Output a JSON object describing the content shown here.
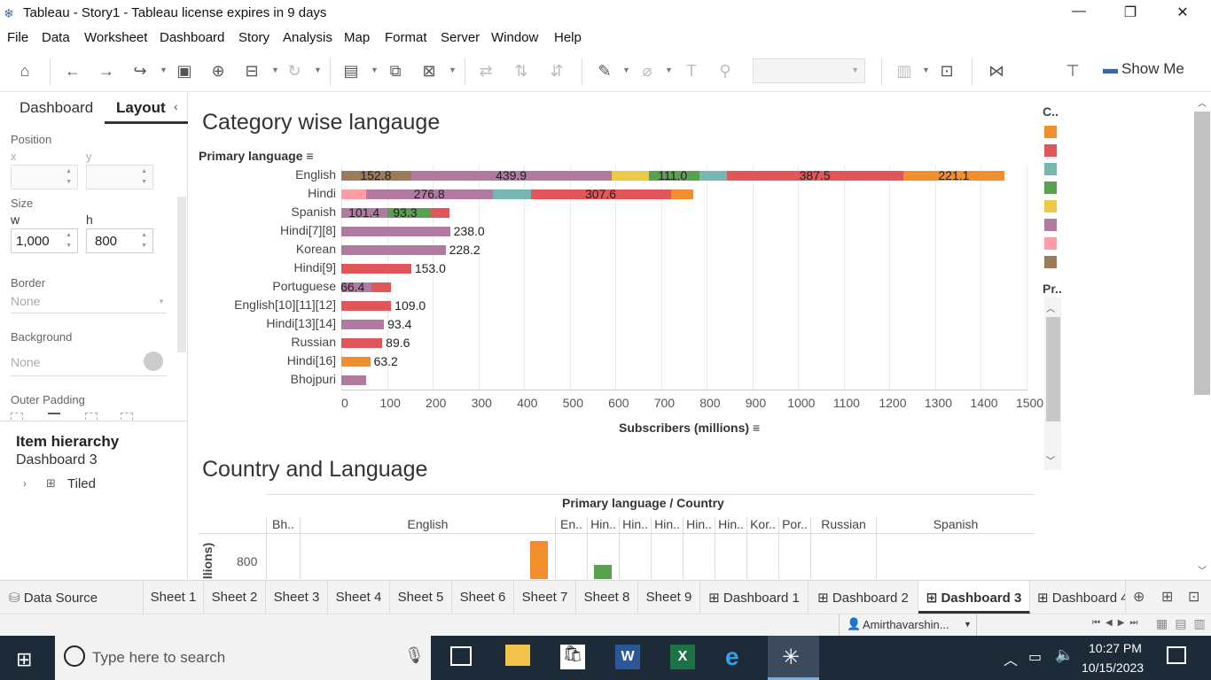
{
  "window": {
    "title": "Tableau - Story1 - Tableau license expires in 9 days"
  },
  "menu": [
    "File",
    "Data",
    "Worksheet",
    "Dashboard",
    "Story",
    "Analysis",
    "Map",
    "Format",
    "Server",
    "Window",
    "Help"
  ],
  "toolbar": {
    "show_me": "Show Me"
  },
  "left_panel": {
    "tabs": {
      "dashboard": "Dashboard",
      "layout": "Layout"
    },
    "position_label": "Position",
    "x_label": "x",
    "y_label": "y",
    "size_label": "Size",
    "w_label": "w",
    "h_label": "h",
    "w_value": "1,000",
    "h_value": "800",
    "border_label": "Border",
    "border_value": "None",
    "background_label": "Background",
    "background_value": "None",
    "outer_padding_label": "Outer Padding",
    "item_hierarchy_title": "Item hierarchy",
    "hierarchy_root": "Dashboard 3",
    "hierarchy_child": "Tiled"
  },
  "chart1_title": "Category wise langauge",
  "chart_data": [
    {
      "type": "bar",
      "orientation": "horizontal-stacked",
      "title": "Category wise langauge",
      "ylabel": "Primary language",
      "xlabel": "Subscribers (millions)",
      "xlim": [
        0,
        1500
      ],
      "xticks": [
        0,
        100,
        200,
        300,
        400,
        500,
        600,
        700,
        800,
        900,
        1000,
        1100,
        1200,
        1300,
        1400,
        1500
      ],
      "categories": [
        "English",
        "Hindi",
        "Spanish",
        "Hindi[7][8]",
        "Korean",
        "Hindi[9]",
        "Portuguese",
        "English[10][11][12]",
        "Hindi[13][14]",
        "Russian",
        "Hindi[16]",
        "Bhojpuri"
      ],
      "rows": [
        {
          "language": "English",
          "segments": [
            {
              "color": "#9c7a5a",
              "value": 152.8,
              "label": "152.8"
            },
            {
              "color": "#b07aa1",
              "value": 439.9,
              "label": "439.9"
            },
            {
              "color": "#edc948",
              "value": 80
            },
            {
              "color": "#59a14f",
              "value": 111.0,
              "label": "111.0"
            },
            {
              "color": "#76b7b2",
              "value": 60
            },
            {
              "color": "#e15759",
              "value": 387.5,
              "label": "387.5"
            },
            {
              "color": "#f28e2b",
              "value": 221.1,
              "label": "221.1"
            }
          ]
        },
        {
          "language": "Hindi",
          "segments": [
            {
              "color": "#ff9da7",
              "value": 55
            },
            {
              "color": "#b07aa1",
              "value": 276.8,
              "label": "276.8"
            },
            {
              "color": "#76b7b2",
              "value": 83
            },
            {
              "color": "#e15759",
              "value": 307.6,
              "label": "307.6"
            },
            {
              "color": "#f28e2b",
              "value": 48
            }
          ]
        },
        {
          "language": "Spanish",
          "segments": [
            {
              "color": "#b07aa1",
              "value": 101.4,
              "label": "101.4"
            },
            {
              "color": "#59a14f",
              "value": 93.3,
              "label": "93.3"
            },
            {
              "color": "#e15759",
              "value": 43
            }
          ]
        },
        {
          "language": "Hindi[7][8]",
          "segments": [
            {
              "color": "#b07aa1",
              "value": 238.0
            }
          ],
          "total_label": "238.0"
        },
        {
          "language": "Korean",
          "segments": [
            {
              "color": "#b07aa1",
              "value": 228.2
            }
          ],
          "total_label": "228.2"
        },
        {
          "language": "Hindi[9]",
          "segments": [
            {
              "color": "#e15759",
              "value": 153.0
            }
          ],
          "total_label": "153.0"
        },
        {
          "language": "Portuguese",
          "segments": [
            {
              "color": "#b07aa1",
              "value": 66.4,
              "label": "66.4"
            },
            {
              "color": "#e15759",
              "value": 43
            }
          ]
        },
        {
          "language": "English[10][11][12]",
          "segments": [
            {
              "color": "#e15759",
              "value": 109.0
            }
          ],
          "total_label": "109.0"
        },
        {
          "language": "Hindi[13][14]",
          "segments": [
            {
              "color": "#b07aa1",
              "value": 93.4
            }
          ],
          "total_label": "93.4"
        },
        {
          "language": "Russian",
          "segments": [
            {
              "color": "#e15759",
              "value": 89.6
            }
          ],
          "total_label": "89.6"
        },
        {
          "language": "Hindi[16]",
          "segments": [
            {
              "color": "#f28e2b",
              "value": 63.2
            }
          ],
          "total_label": "63.2"
        },
        {
          "language": "Bhojpuri",
          "segments": [
            {
              "color": "#b07aa1",
              "value": 55
            }
          ]
        }
      ],
      "legend": {
        "title": "C..",
        "position": "right",
        "colors": [
          "#f28e2b",
          "#e15759",
          "#76b7b2",
          "#59a14f",
          "#edc948",
          "#b07aa1",
          "#ff9da7",
          "#9c7a5a"
        ]
      }
    },
    {
      "type": "bar",
      "title": "Country and Language",
      "header": "Primary language / Country",
      "columns": [
        "Bh..",
        "English",
        "En..",
        "Hin..",
        "Hin..",
        "Hin..",
        "Hin..",
        "Hin..",
        "Kor..",
        "Por..",
        "Russian",
        "Spanish"
      ],
      "ylabel": "illions)",
      "yticks": [
        800
      ],
      "visible_bars": [
        {
          "column": "English",
          "color": "#f28e2b"
        },
        {
          "column": "Hin..",
          "color": "#59a14f"
        }
      ]
    }
  ],
  "chart2_title": "Country and Language",
  "legend2_title": "Pr..",
  "tabs": [
    "Data Source",
    "Sheet 1",
    "Sheet 2",
    "Sheet 3",
    "Sheet 4",
    "Sheet 5",
    "Sheet 6",
    "Sheet 7",
    "Sheet 8",
    "Sheet 9",
    "Dashboard 1",
    "Dashboard 2",
    "Dashboard 3",
    "Dashboard 4"
  ],
  "status": {
    "user": "Amirthavarshin..."
  },
  "taskbar": {
    "search_placeholder": "Type here to search",
    "time": "10:27 PM",
    "date": "10/15/2023"
  }
}
